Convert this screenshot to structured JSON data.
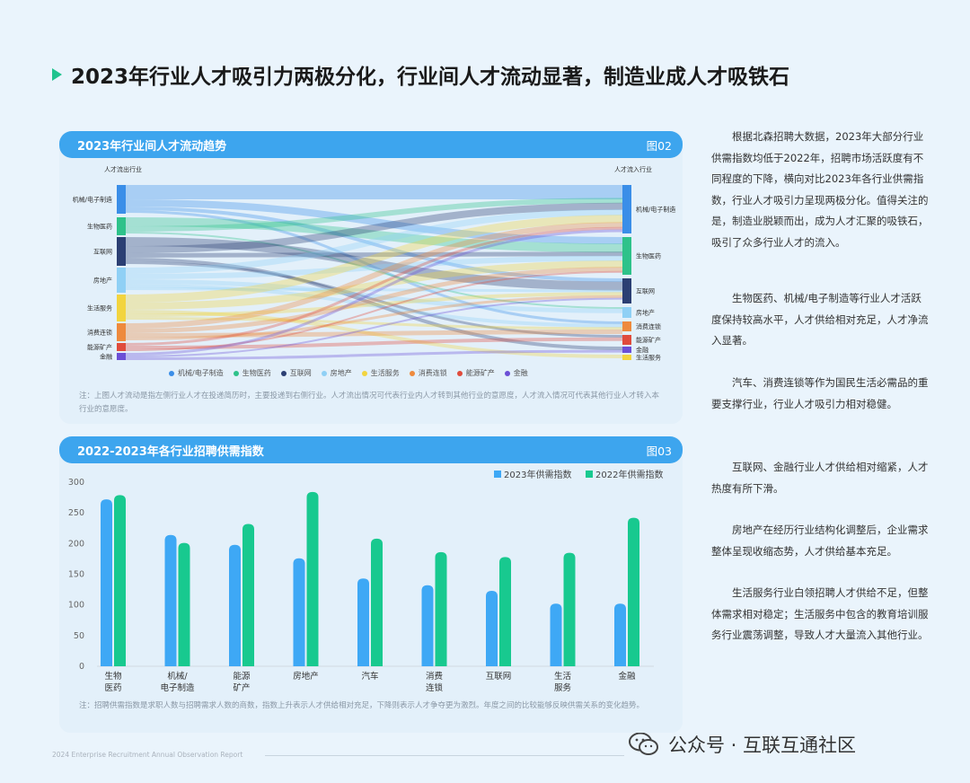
{
  "title": "2023年行业人才吸引力两极分化，行业间人才流动显著，制造业成人才吸铁石",
  "sankey": {
    "header": "2023年行业间人才流动趋势",
    "fig": "图02",
    "left_title": "人才流出行业",
    "right_title": "人才流入行业",
    "left_nodes": [
      "机械/电子制造",
      "生物医药",
      "互联网",
      "房地产",
      "生活服务",
      "消费连锁",
      "能源矿产",
      "金融"
    ],
    "right_nodes": [
      "机械/电子制造",
      "生物医药",
      "互联网",
      "房地产",
      "消费连锁",
      "能源矿产",
      "金融",
      "生活服务"
    ],
    "legend": [
      {
        "label": "机械/电子制造",
        "color": "#3a8ee8"
      },
      {
        "label": "生物医药",
        "color": "#2ec28a"
      },
      {
        "label": "互联网",
        "color": "#2b3f73"
      },
      {
        "label": "房地产",
        "color": "#8fd0f5"
      },
      {
        "label": "生活服务",
        "color": "#f2d43f"
      },
      {
        "label": "消费连锁",
        "color": "#ee8a3d"
      },
      {
        "label": "能源矿产",
        "color": "#e04b3c"
      },
      {
        "label": "金融",
        "color": "#6b4fd6"
      }
    ],
    "note": "注：上图人才流动是指左侧行业人才在投递简历时，主要投递到右侧行业。人才流出情况可代表行业内人才转到其他行业的意愿度，人才流入情况可代表其他行业人才转入本行业的意愿度。"
  },
  "chart_data": {
    "type": "bar",
    "header": "2022-2023年各行业招聘供需指数",
    "fig": "图03",
    "categories": [
      [
        "生物",
        "医药"
      ],
      [
        "机械/",
        "电子制造"
      ],
      [
        "能源",
        "矿产"
      ],
      [
        "房地产"
      ],
      [
        "汽车"
      ],
      [
        "消费",
        "连锁"
      ],
      [
        "互联网"
      ],
      [
        "生活",
        "服务"
      ],
      [
        "金融"
      ]
    ],
    "series": [
      {
        "name": "2023年供需指数",
        "color": "#3ea8f5",
        "values": [
          272,
          214,
          198,
          176,
          143,
          132,
          123,
          102,
          102
        ]
      },
      {
        "name": "2022年供需指数",
        "color": "#18c98f",
        "values": [
          279,
          201,
          232,
          284,
          208,
          186,
          178,
          185,
          242
        ]
      }
    ],
    "ylim": [
      0,
      300
    ],
    "yticks": [
      0,
      50,
      100,
      150,
      200,
      250,
      300
    ],
    "note": "注：招聘供需指数是求职人数与招聘需求人数的商数，指数上升表示人才供给相对充足，下降则表示人才争夺更为激烈。年度之间的比较能够反映供需关系的变化趋势。"
  },
  "paragraphs": [
    "根据北森招聘大数据，2023年大部分行业供需指数均低于2022年，招聘市场活跃度有不同程度的下降，横向对比2023年各行业供需指数，行业人才吸引力呈现两极分化。值得关注的是，制造业脱颖而出，成为人才汇聚的吸铁石，吸引了众多行业人才的流入。",
    "生物医药、机械/电子制造等行业人才活跃度保持较高水平，人才供给相对充足，人才净流入显著。",
    "汽车、消费连锁等作为国民生活必需品的重要支撑行业，行业人才吸引力相对稳健。",
    "互联网、金融行业人才供给相对缩紧，人才热度有所下滑。",
    "房地产在经历行业结构化调整后，企业需求整体呈现收缩态势，人才供给基本充足。",
    "生活服务行业白领招聘人才供给不足，但整体需求相对稳定；生活服务中包含的教育培训服务行业震荡调整，导致人才大量流入其他行业。"
  ],
  "footer": "2024 Enterprise Recruitment Annual Observation Report",
  "wechat": "公众号 · 互联互通社区"
}
